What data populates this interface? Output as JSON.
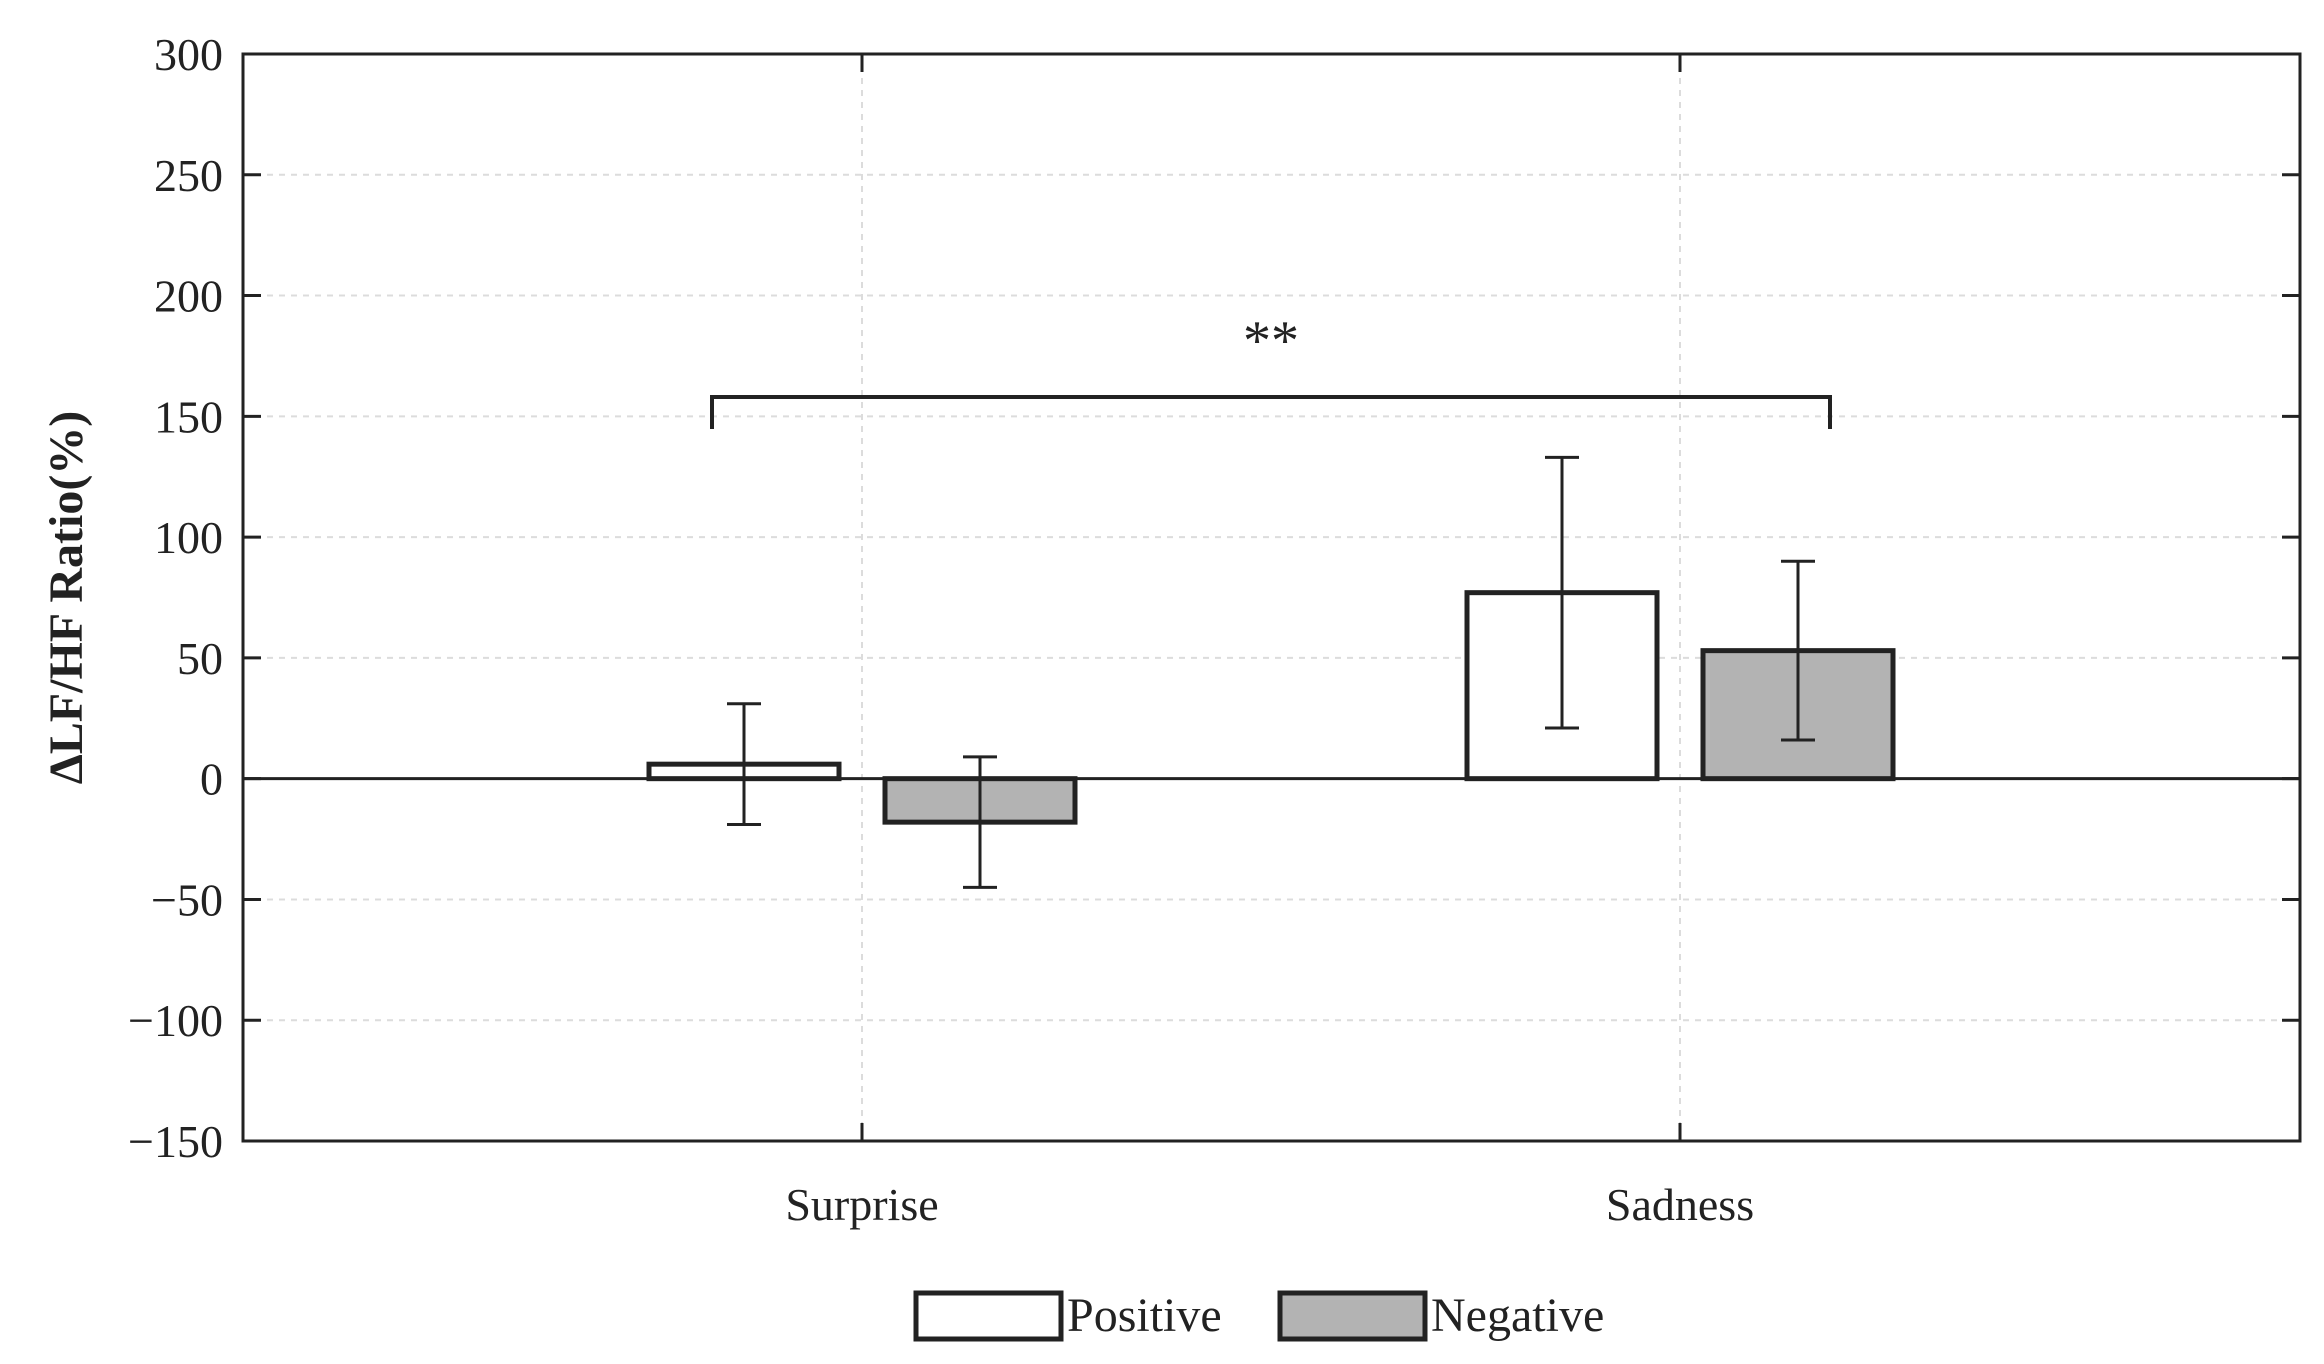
{
  "chart_data": {
    "type": "bar",
    "title": "",
    "xlabel": "",
    "ylabel": "ΔLF/HF Ratio(%)",
    "categories": [
      "Surprise",
      "Sadness"
    ],
    "series": [
      {
        "name": "Positive",
        "values": [
          6,
          77
        ],
        "errors": [
          25,
          56
        ],
        "color": "#ffffff"
      },
      {
        "name": "Negative",
        "values": [
          -18,
          53
        ],
        "errors": [
          27,
          37
        ],
        "color": "#b3b3b3"
      }
    ],
    "ylim": [
      -150,
      300
    ],
    "yticks": [
      300,
      250,
      200,
      150,
      100,
      50,
      0,
      -50,
      -100,
      -150
    ],
    "ytick_labels": [
      "300",
      "250",
      "200",
      "150",
      "100",
      "50",
      "0",
      "−50",
      "−100",
      "−150"
    ],
    "grid": true,
    "legend_position": "bottom-center",
    "significance": {
      "label": "**",
      "from_category": "Surprise",
      "to_category": "Sadness",
      "level": 158
    }
  }
}
